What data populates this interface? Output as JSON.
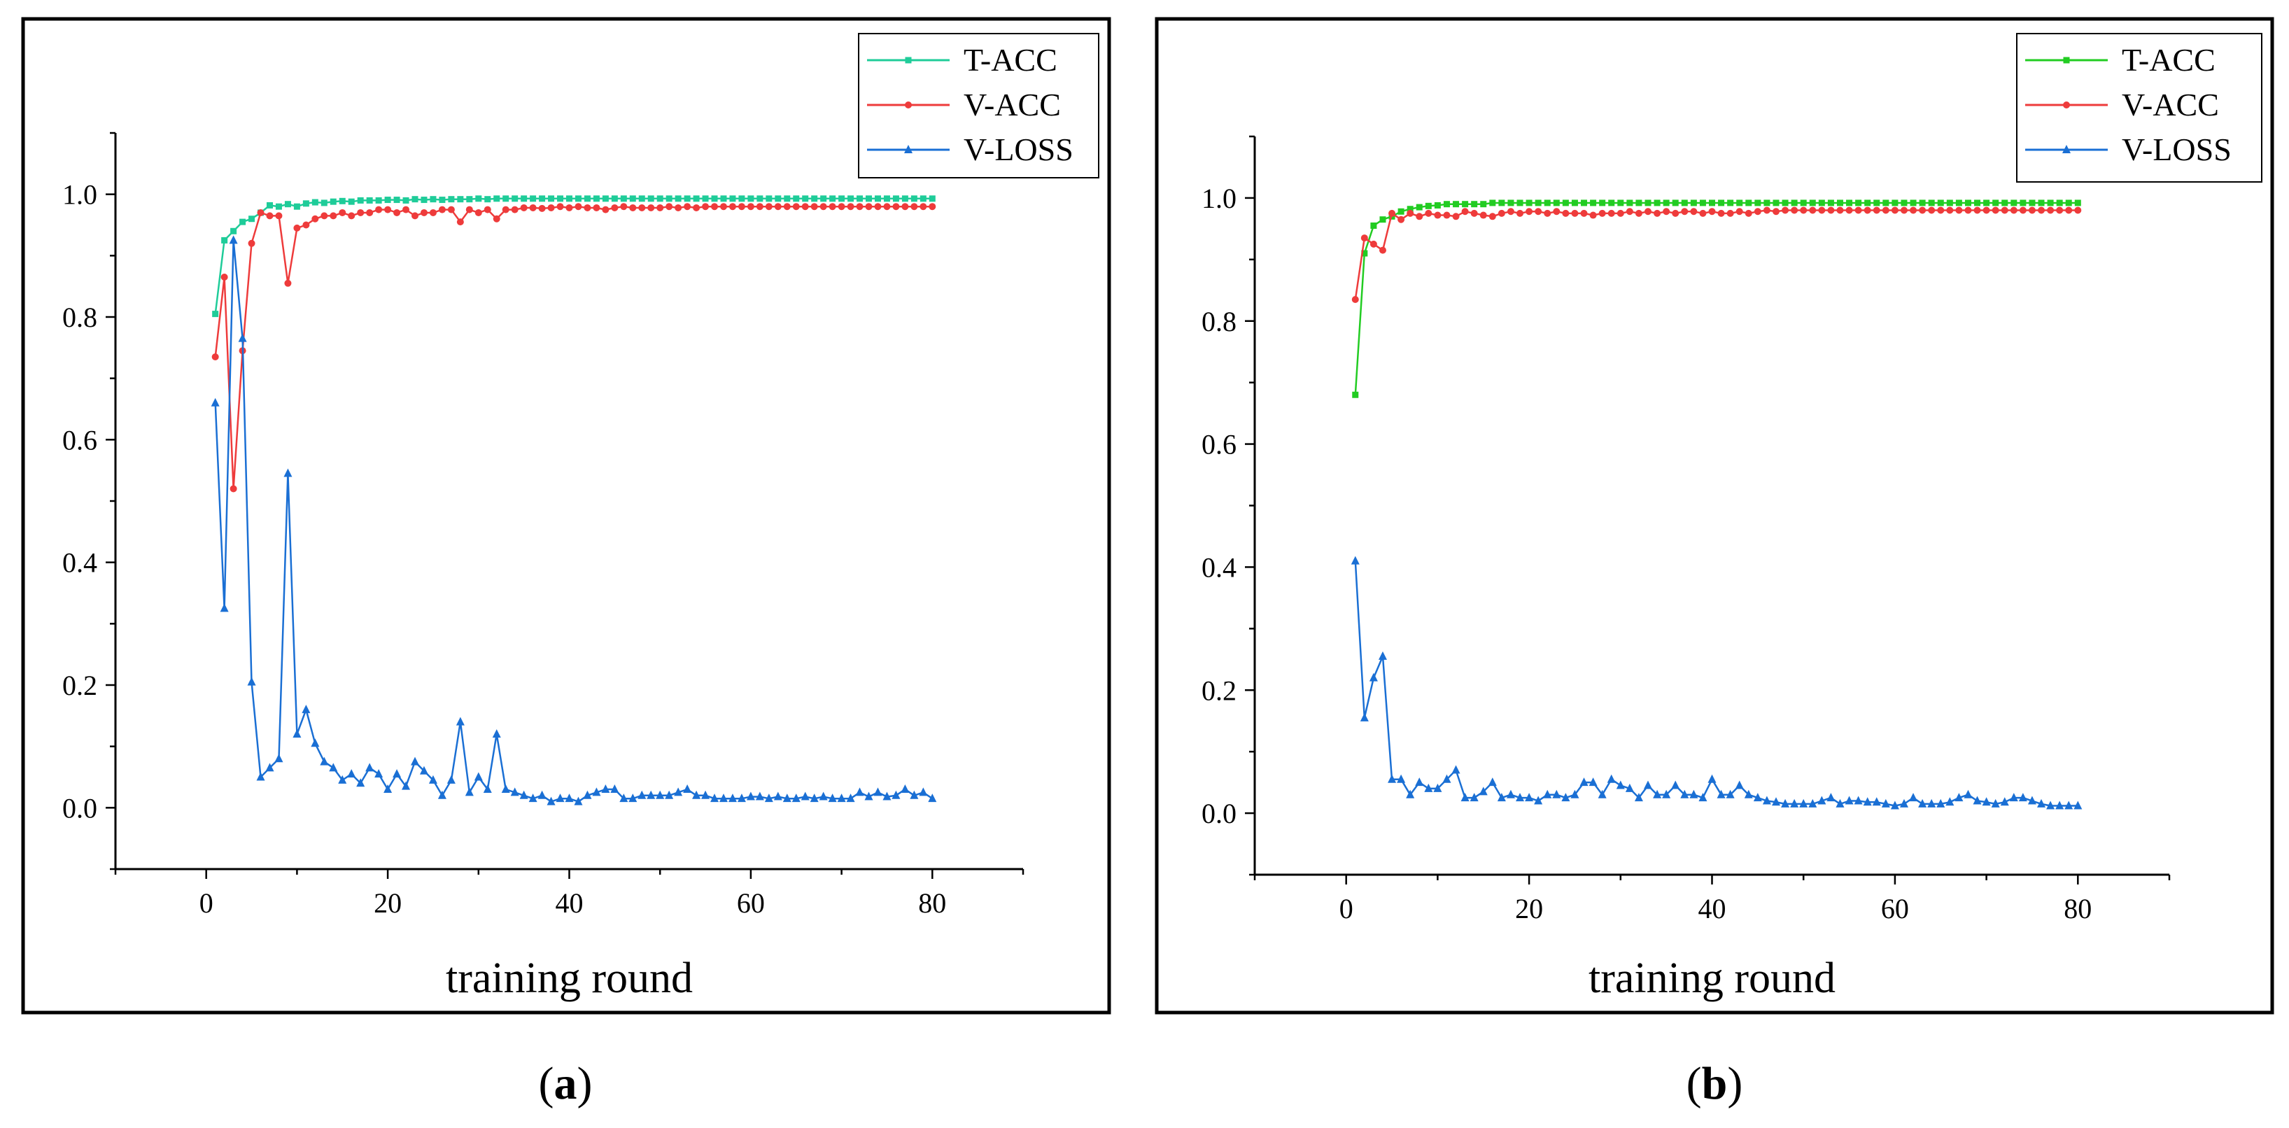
{
  "chart_data": [
    {
      "panel": "a",
      "caption": "a",
      "type": "line",
      "xlabel": "training round",
      "ylabel": "",
      "xlim": [
        -10,
        90
      ],
      "ylim": [
        -0.1,
        1.1
      ],
      "xticks": [
        0,
        20,
        40,
        60,
        80
      ],
      "yticks": [
        0.0,
        0.2,
        0.4,
        0.6,
        0.8,
        1.0
      ],
      "xtick_labels": [
        "0",
        "20",
        "40",
        "60",
        "80"
      ],
      "ytick_labels": [
        "0.0",
        "0.2",
        "0.4",
        "0.6",
        "0.8",
        "1.0"
      ],
      "legend_position": "top-right",
      "series": [
        {
          "name": "T-ACC",
          "color": "#1fcc99",
          "marker": "square",
          "values": [
            0.805,
            0.925,
            0.94,
            0.955,
            0.96,
            0.97,
            0.982,
            0.98,
            0.984,
            0.98,
            0.985,
            0.987,
            0.986,
            0.988,
            0.989,
            0.988,
            0.99,
            0.99,
            0.99,
            0.991,
            0.991,
            0.99,
            0.992,
            0.991,
            0.992,
            0.991,
            0.992,
            0.992,
            0.992,
            0.993,
            0.992,
            0.993,
            0.993,
            0.993,
            0.993,
            0.993,
            0.993,
            0.993,
            0.993,
            0.993,
            0.993,
            0.993,
            0.993,
            0.993,
            0.993,
            0.993,
            0.993,
            0.993,
            0.993,
            0.993,
            0.993,
            0.993,
            0.993,
            0.993,
            0.993,
            0.993,
            0.993,
            0.993,
            0.993,
            0.993,
            0.993,
            0.993,
            0.993,
            0.993,
            0.993,
            0.993,
            0.993,
            0.993,
            0.993,
            0.993,
            0.993,
            0.993,
            0.993,
            0.993,
            0.993,
            0.993,
            0.993,
            0.993,
            0.993,
            0.993
          ]
        },
        {
          "name": "V-ACC",
          "color": "#ee3b3b",
          "marker": "circle",
          "values": [
            0.735,
            0.865,
            0.52,
            0.745,
            0.92,
            0.97,
            0.965,
            0.965,
            0.855,
            0.945,
            0.95,
            0.96,
            0.965,
            0.965,
            0.97,
            0.965,
            0.97,
            0.97,
            0.975,
            0.975,
            0.97,
            0.975,
            0.965,
            0.97,
            0.97,
            0.975,
            0.975,
            0.955,
            0.975,
            0.97,
            0.975,
            0.96,
            0.975,
            0.975,
            0.978,
            0.978,
            0.977,
            0.978,
            0.98,
            0.978,
            0.98,
            0.978,
            0.978,
            0.975,
            0.978,
            0.98,
            0.978,
            0.978,
            0.978,
            0.978,
            0.98,
            0.978,
            0.98,
            0.978,
            0.98,
            0.98,
            0.98,
            0.98,
            0.98,
            0.98,
            0.98,
            0.98,
            0.98,
            0.98,
            0.98,
            0.98,
            0.98,
            0.98,
            0.98,
            0.98,
            0.98,
            0.98,
            0.98,
            0.98,
            0.98,
            0.98,
            0.98,
            0.98,
            0.98,
            0.98
          ]
        },
        {
          "name": "V-LOSS",
          "color": "#1a6fd4",
          "marker": "triangle",
          "values": [
            0.66,
            0.325,
            0.925,
            0.765,
            0.205,
            0.05,
            0.065,
            0.08,
            0.545,
            0.12,
            0.16,
            0.105,
            0.075,
            0.065,
            0.045,
            0.055,
            0.04,
            0.065,
            0.055,
            0.03,
            0.055,
            0.035,
            0.075,
            0.06,
            0.045,
            0.02,
            0.045,
            0.14,
            0.025,
            0.05,
            0.03,
            0.12,
            0.03,
            0.025,
            0.02,
            0.015,
            0.02,
            0.01,
            0.015,
            0.015,
            0.01,
            0.02,
            0.025,
            0.03,
            0.03,
            0.015,
            0.015,
            0.02,
            0.02,
            0.02,
            0.02,
            0.025,
            0.03,
            0.02,
            0.02,
            0.015,
            0.015,
            0.015,
            0.015,
            0.018,
            0.018,
            0.015,
            0.018,
            0.015,
            0.015,
            0.018,
            0.015,
            0.018,
            0.015,
            0.015,
            0.015,
            0.025,
            0.018,
            0.025,
            0.018,
            0.02,
            0.03,
            0.02,
            0.025,
            0.015
          ]
        }
      ]
    },
    {
      "panel": "b",
      "caption": "b",
      "type": "line",
      "xlabel": "training round",
      "ylabel": "",
      "xlim": [
        -10,
        90
      ],
      "ylim": [
        -0.1,
        1.1
      ],
      "xticks": [
        0,
        20,
        40,
        60,
        80
      ],
      "yticks": [
        0.0,
        0.2,
        0.4,
        0.6,
        0.8,
        1.0
      ],
      "xtick_labels": [
        "0",
        "20",
        "40",
        "60",
        "80"
      ],
      "ytick_labels": [
        "0.0",
        "0.2",
        "0.4",
        "0.6",
        "0.8",
        "1.0"
      ],
      "legend_position": "top-right",
      "series": [
        {
          "name": "T-ACC",
          "color": "#22cc22",
          "marker": "square",
          "values": [
            0.68,
            0.91,
            0.955,
            0.965,
            0.97,
            0.978,
            0.982,
            0.985,
            0.987,
            0.988,
            0.99,
            0.99,
            0.99,
            0.99,
            0.99,
            0.992,
            0.992,
            0.992,
            0.992,
            0.992,
            0.992,
            0.992,
            0.992,
            0.992,
            0.992,
            0.992,
            0.992,
            0.992,
            0.992,
            0.992,
            0.992,
            0.992,
            0.992,
            0.992,
            0.992,
            0.992,
            0.992,
            0.992,
            0.992,
            0.992,
            0.992,
            0.992,
            0.992,
            0.992,
            0.992,
            0.992,
            0.992,
            0.992,
            0.992,
            0.992,
            0.992,
            0.992,
            0.992,
            0.992,
            0.992,
            0.992,
            0.992,
            0.992,
            0.992,
            0.992,
            0.992,
            0.992,
            0.992,
            0.992,
            0.992,
            0.992,
            0.992,
            0.992,
            0.992,
            0.992,
            0.992,
            0.992,
            0.992,
            0.992,
            0.992,
            0.992,
            0.992,
            0.992,
            0.992,
            0.992
          ]
        },
        {
          "name": "V-ACC",
          "color": "#ee3b3b",
          "marker": "circle",
          "values": [
            0.835,
            0.935,
            0.925,
            0.915,
            0.975,
            0.965,
            0.975,
            0.97,
            0.975,
            0.972,
            0.972,
            0.97,
            0.978,
            0.975,
            0.972,
            0.97,
            0.975,
            0.978,
            0.975,
            0.978,
            0.978,
            0.975,
            0.978,
            0.975,
            0.975,
            0.975,
            0.972,
            0.975,
            0.975,
            0.975,
            0.978,
            0.975,
            0.978,
            0.975,
            0.978,
            0.975,
            0.978,
            0.978,
            0.975,
            0.978,
            0.975,
            0.975,
            0.978,
            0.975,
            0.978,
            0.98,
            0.978,
            0.98,
            0.98,
            0.98,
            0.98,
            0.98,
            0.98,
            0.98,
            0.98,
            0.98,
            0.98,
            0.98,
            0.98,
            0.98,
            0.98,
            0.98,
            0.98,
            0.98,
            0.98,
            0.98,
            0.98,
            0.98,
            0.98,
            0.98,
            0.98,
            0.98,
            0.98,
            0.98,
            0.98,
            0.98,
            0.98,
            0.98,
            0.98,
            0.98
          ]
        },
        {
          "name": "V-LOSS",
          "color": "#1a6fd4",
          "marker": "triangle",
          "values": [
            0.41,
            0.155,
            0.22,
            0.255,
            0.055,
            0.055,
            0.03,
            0.05,
            0.04,
            0.04,
            0.055,
            0.07,
            0.025,
            0.025,
            0.035,
            0.05,
            0.025,
            0.03,
            0.025,
            0.025,
            0.02,
            0.03,
            0.03,
            0.025,
            0.03,
            0.05,
            0.05,
            0.03,
            0.055,
            0.045,
            0.04,
            0.025,
            0.045,
            0.03,
            0.03,
            0.045,
            0.03,
            0.03,
            0.025,
            0.055,
            0.03,
            0.03,
            0.045,
            0.03,
            0.025,
            0.02,
            0.018,
            0.015,
            0.015,
            0.015,
            0.015,
            0.02,
            0.025,
            0.015,
            0.02,
            0.02,
            0.018,
            0.018,
            0.015,
            0.012,
            0.015,
            0.025,
            0.015,
            0.015,
            0.015,
            0.018,
            0.025,
            0.03,
            0.02,
            0.018,
            0.015,
            0.018,
            0.025,
            0.025,
            0.02,
            0.015,
            0.012,
            0.012,
            0.012,
            0.012
          ]
        }
      ]
    }
  ]
}
